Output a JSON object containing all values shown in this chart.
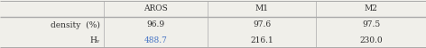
{
  "col_headers": [
    "AROS",
    "M1",
    "M2"
  ],
  "row_labels": [
    "density  (%)",
    "Hᵥ"
  ],
  "cell_values": [
    [
      "96.9",
      "97.6",
      "97.5"
    ],
    [
      "488.7",
      "216.1",
      "230.0"
    ]
  ],
  "cell_text_colors": [
    [
      "#2e2e2e",
      "#2e2e2e",
      "#2e2e2e"
    ],
    [
      "#4472c4",
      "#2e2e2e",
      "#2e2e2e"
    ]
  ],
  "header_fontsize": 6.5,
  "cell_fontsize": 6.5,
  "bg_color": "#f0efea",
  "line_color": "#aaaaaa",
  "figsize": [
    4.72,
    0.54
  ],
  "dpi": 100
}
